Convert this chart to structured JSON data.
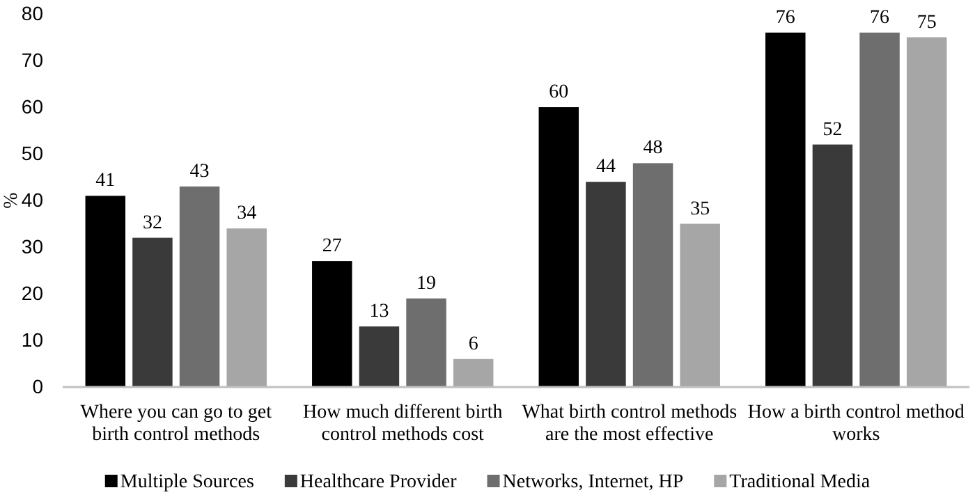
{
  "chart_data": {
    "type": "bar",
    "ylabel": "%",
    "categories": [
      "Where you can go to get birth control methods",
      "How much different birth control methods cost",
      "What birth control methods are the most effective",
      "How a birth control method works"
    ],
    "series": [
      {
        "name": "Multiple Sources",
        "color": "#000000",
        "values": [
          41,
          27,
          60,
          76
        ]
      },
      {
        "name": "Healthcare Provider",
        "color": "#3a3a3a",
        "values": [
          32,
          13,
          44,
          52
        ]
      },
      {
        "name": "Networks, Internet, HP",
        "color": "#6e6e6e",
        "values": [
          43,
          19,
          48,
          76
        ]
      },
      {
        "name": "Traditional Media",
        "color": "#a6a6a6",
        "values": [
          34,
          6,
          35,
          75
        ]
      }
    ],
    "ylim": [
      0,
      80
    ],
    "yticks": [
      0,
      10,
      20,
      30,
      40,
      50,
      60,
      70,
      80
    ],
    "data_labels": true,
    "grid": false,
    "legend": "bottom"
  }
}
